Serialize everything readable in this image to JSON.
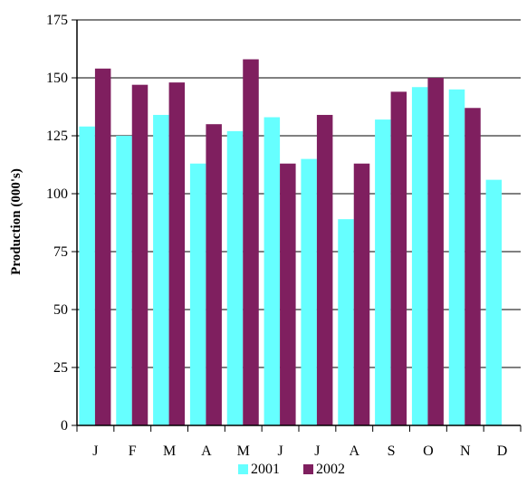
{
  "chart_data": {
    "type": "bar",
    "categories": [
      "J",
      "F",
      "M",
      "A",
      "M",
      "J",
      "J",
      "A",
      "S",
      "O",
      "N",
      "D"
    ],
    "series": [
      {
        "name": "2001",
        "color": "#66ffff",
        "values": [
          129,
          125,
          134,
          113,
          127,
          133,
          115,
          89,
          132,
          146,
          145,
          106
        ]
      },
      {
        "name": "2002",
        "color": "#7f1f5f",
        "values": [
          154,
          147,
          148,
          130,
          158,
          113,
          134,
          113,
          144,
          150,
          137,
          null
        ]
      }
    ],
    "title": "",
    "xlabel": "",
    "ylabel": "Production (000's)",
    "ylim": [
      0,
      175
    ],
    "yticks": [
      0,
      25,
      50,
      75,
      100,
      125,
      150,
      175
    ],
    "grid": true,
    "legend_position": "bottom"
  }
}
